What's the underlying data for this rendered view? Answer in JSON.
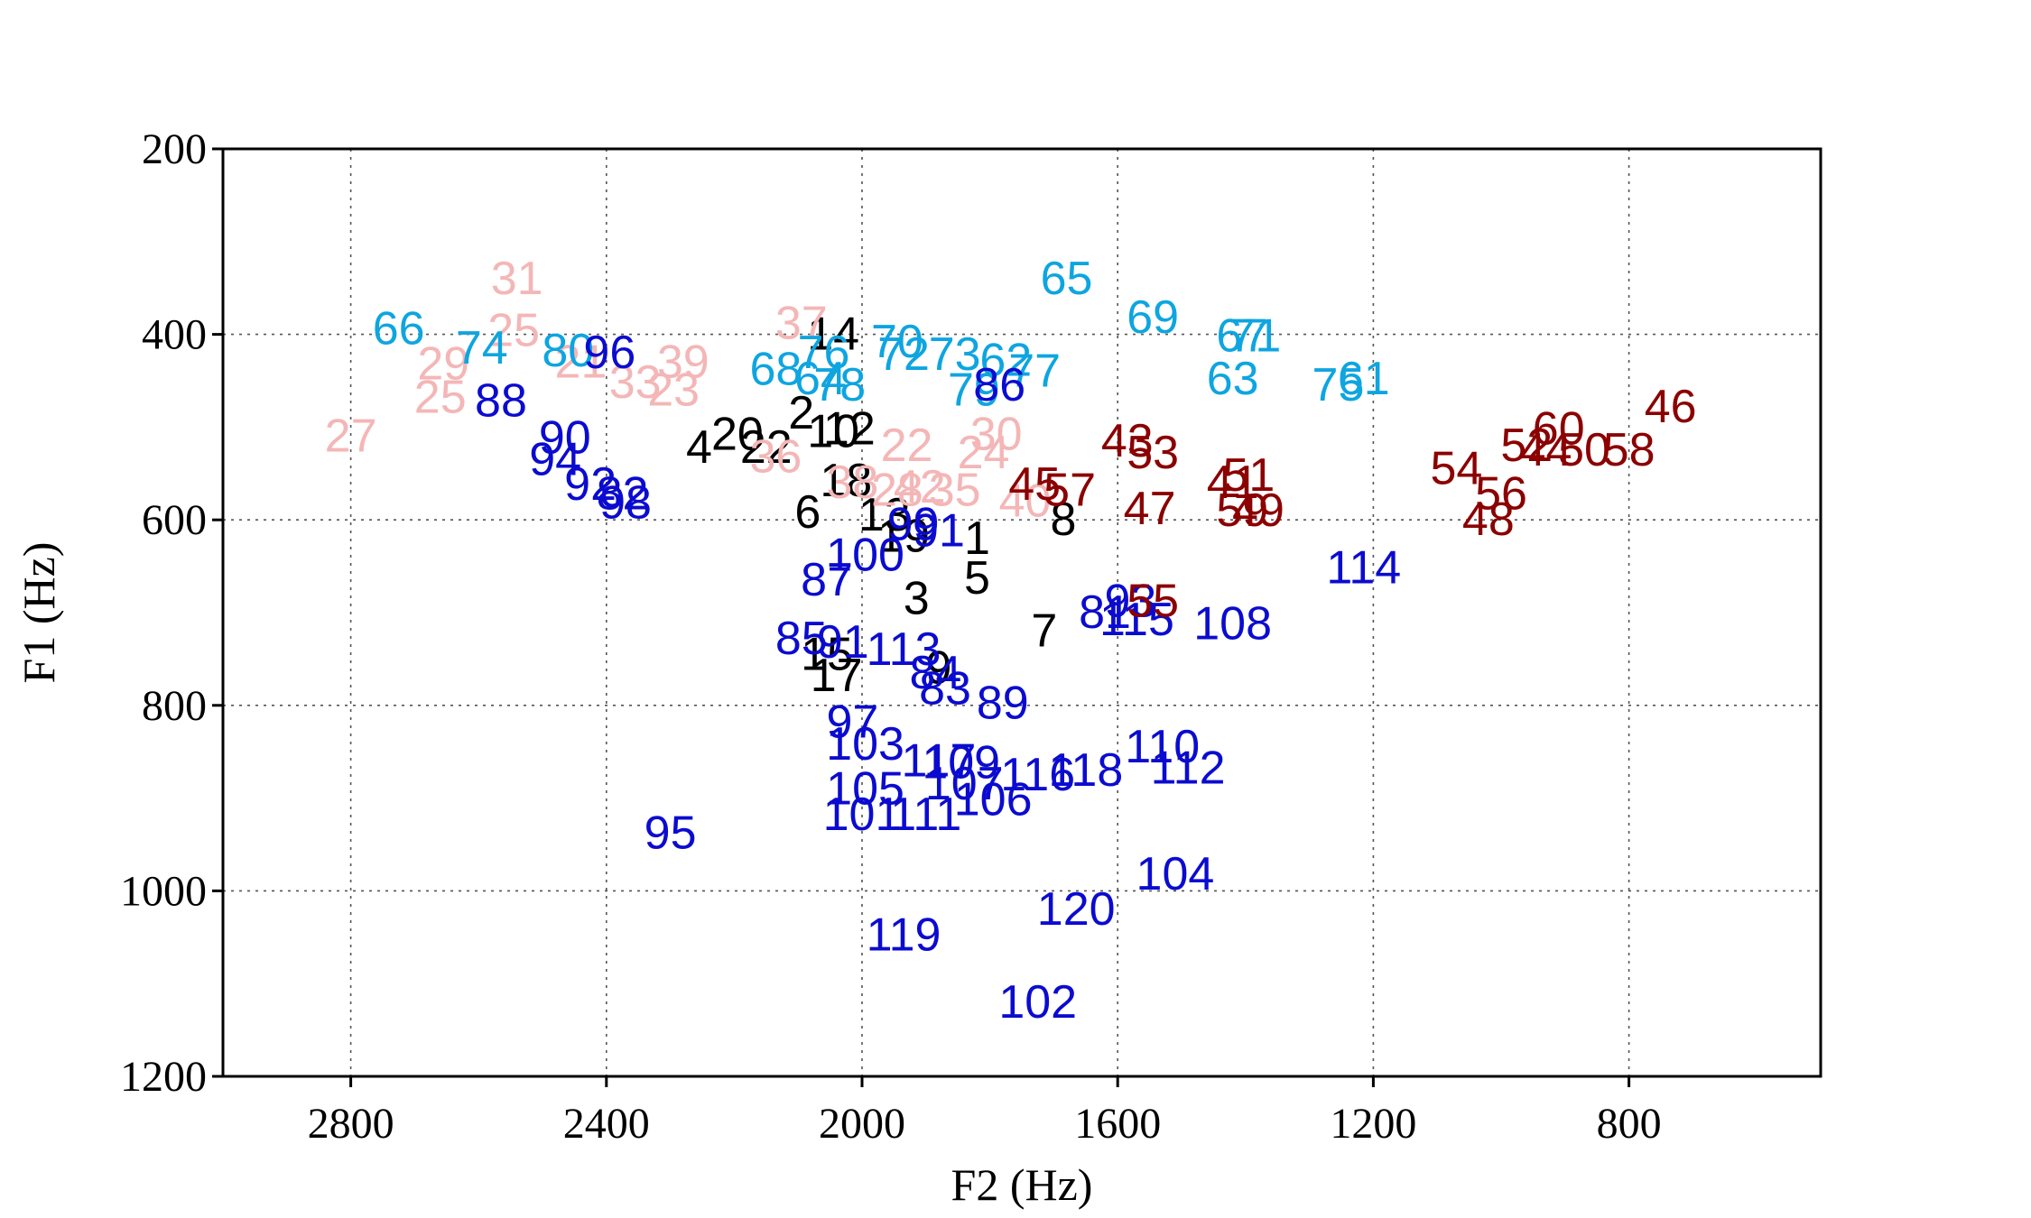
{
  "chart_data": {
    "type": "scatter",
    "title": "",
    "xlabel": "F2 (Hz)",
    "ylabel": "F1 (Hz)",
    "xlim": [
      3000,
      500
    ],
    "ylim": [
      1200,
      200
    ],
    "x_reversed": true,
    "y_reversed": true,
    "x_ticks": [
      "2800",
      "2400",
      "2000",
      "1600",
      "1200",
      "800"
    ],
    "y_ticks": [
      "200",
      "400",
      "600",
      "800",
      "1000",
      "1200"
    ],
    "grid": true,
    "point_labels_are_markers": true,
    "colors": {
      "black": "#000000",
      "pink": "#f4b6b6",
      "cyan": "#0ea5e0",
      "blue": "#0b0bd0",
      "darkred": "#8b0000"
    },
    "points": [
      {
        "label": "1",
        "x": 1820,
        "y": 620,
        "color": "black"
      },
      {
        "label": "2",
        "x": 2095,
        "y": 485,
        "color": "black"
      },
      {
        "label": "3",
        "x": 1915,
        "y": 685,
        "color": "black"
      },
      {
        "label": "4",
        "x": 2255,
        "y": 522,
        "color": "black"
      },
      {
        "label": "5",
        "x": 1820,
        "y": 663,
        "color": "black"
      },
      {
        "label": "6",
        "x": 2085,
        "y": 592,
        "color": "black"
      },
      {
        "label": "7",
        "x": 1715,
        "y": 720,
        "color": "black"
      },
      {
        "label": "8",
        "x": 1685,
        "y": 600,
        "color": "black"
      },
      {
        "label": "9",
        "x": 1880,
        "y": 760,
        "color": "black"
      },
      {
        "label": "10",
        "x": 2045,
        "y": 505,
        "color": "black"
      },
      {
        "label": "12",
        "x": 2020,
        "y": 502,
        "color": "black"
      },
      {
        "label": "13",
        "x": 1965,
        "y": 595,
        "color": "black"
      },
      {
        "label": "14",
        "x": 2045,
        "y": 400,
        "color": "black"
      },
      {
        "label": "15",
        "x": 2055,
        "y": 745,
        "color": "black"
      },
      {
        "label": "17",
        "x": 2040,
        "y": 768,
        "color": "black"
      },
      {
        "label": "18",
        "x": 2025,
        "y": 558,
        "color": "black"
      },
      {
        "label": "19",
        "x": 1935,
        "y": 618,
        "color": "black"
      },
      {
        "label": "20",
        "x": 2195,
        "y": 508,
        "color": "black"
      },
      {
        "label": "22",
        "x": 2150,
        "y": 522,
        "color": "black"
      },
      {
        "label": "21",
        "x": 2440,
        "y": 430,
        "color": "pink"
      },
      {
        "label": "22",
        "x": 1930,
        "y": 520,
        "color": "pink"
      },
      {
        "label": "23",
        "x": 2295,
        "y": 460,
        "color": "pink"
      },
      {
        "label": "24",
        "x": 1810,
        "y": 528,
        "color": "pink"
      },
      {
        "label": "25",
        "x": 2545,
        "y": 396,
        "color": "pink"
      },
      {
        "label": "25",
        "x": 2660,
        "y": 468,
        "color": "pink"
      },
      {
        "label": "27",
        "x": 2800,
        "y": 510,
        "color": "pink"
      },
      {
        "label": "28",
        "x": 1945,
        "y": 568,
        "color": "pink"
      },
      {
        "label": "29",
        "x": 2655,
        "y": 432,
        "color": "pink"
      },
      {
        "label": "30",
        "x": 1790,
        "y": 508,
        "color": "pink"
      },
      {
        "label": "31",
        "x": 2540,
        "y": 340,
        "color": "pink"
      },
      {
        "label": "33",
        "x": 2355,
        "y": 452,
        "color": "pink"
      },
      {
        "label": "35",
        "x": 1855,
        "y": 568,
        "color": "pink"
      },
      {
        "label": "36",
        "x": 2135,
        "y": 532,
        "color": "pink"
      },
      {
        "label": "37",
        "x": 2095,
        "y": 388,
        "color": "pink"
      },
      {
        "label": "38",
        "x": 2015,
        "y": 560,
        "color": "pink"
      },
      {
        "label": "39",
        "x": 2280,
        "y": 430,
        "color": "pink"
      },
      {
        "label": "40",
        "x": 1745,
        "y": 580,
        "color": "pink"
      },
      {
        "label": "42",
        "x": 1910,
        "y": 565,
        "color": "pink"
      },
      {
        "label": "61",
        "x": 1215,
        "y": 448,
        "color": "cyan"
      },
      {
        "label": "62",
        "x": 1775,
        "y": 428,
        "color": "cyan"
      },
      {
        "label": "63",
        "x": 1420,
        "y": 448,
        "color": "cyan"
      },
      {
        "label": "65",
        "x": 1680,
        "y": 340,
        "color": "cyan"
      },
      {
        "label": "66",
        "x": 2725,
        "y": 394,
        "color": "cyan"
      },
      {
        "label": "67",
        "x": 1405,
        "y": 402,
        "color": "cyan"
      },
      {
        "label": "68",
        "x": 2135,
        "y": 438,
        "color": "cyan"
      },
      {
        "label": "69",
        "x": 1545,
        "y": 382,
        "color": "cyan"
      },
      {
        "label": "70",
        "x": 1945,
        "y": 408,
        "color": "cyan"
      },
      {
        "label": "71",
        "x": 1385,
        "y": 402,
        "color": "cyan"
      },
      {
        "label": "72",
        "x": 1935,
        "y": 422,
        "color": "cyan"
      },
      {
        "label": "73",
        "x": 1855,
        "y": 422,
        "color": "cyan"
      },
      {
        "label": "74",
        "x": 2595,
        "y": 415,
        "color": "cyan"
      },
      {
        "label": "75",
        "x": 1255,
        "y": 455,
        "color": "cyan"
      },
      {
        "label": "76",
        "x": 2060,
        "y": 420,
        "color": "cyan"
      },
      {
        "label": "77",
        "x": 1730,
        "y": 440,
        "color": "cyan"
      },
      {
        "label": "78",
        "x": 2035,
        "y": 455,
        "color": "cyan"
      },
      {
        "label": "79",
        "x": 1825,
        "y": 460,
        "color": "cyan"
      },
      {
        "label": "80",
        "x": 2460,
        "y": 418,
        "color": "cyan"
      },
      {
        "label": "64",
        "x": 2065,
        "y": 448,
        "color": "cyan"
      },
      {
        "label": "81",
        "x": 1620,
        "y": 700,
        "color": "blue"
      },
      {
        "label": "82",
        "x": 2375,
        "y": 572,
        "color": "blue"
      },
      {
        "label": "83",
        "x": 1870,
        "y": 782,
        "color": "blue"
      },
      {
        "label": "84",
        "x": 1885,
        "y": 765,
        "color": "blue"
      },
      {
        "label": "85",
        "x": 2095,
        "y": 728,
        "color": "blue"
      },
      {
        "label": "86",
        "x": 1785,
        "y": 455,
        "color": "blue"
      },
      {
        "label": "87",
        "x": 2055,
        "y": 665,
        "color": "blue"
      },
      {
        "label": "88",
        "x": 2565,
        "y": 472,
        "color": "blue"
      },
      {
        "label": "89",
        "x": 1780,
        "y": 798,
        "color": "blue"
      },
      {
        "label": "90",
        "x": 2465,
        "y": 512,
        "color": "blue"
      },
      {
        "label": "91",
        "x": 1880,
        "y": 612,
        "color": "blue"
      },
      {
        "label": "91",
        "x": 2030,
        "y": 732,
        "color": "blue"
      },
      {
        "label": "92",
        "x": 2425,
        "y": 562,
        "color": "blue"
      },
      {
        "label": "93",
        "x": 1580,
        "y": 688,
        "color": "blue"
      },
      {
        "label": "94",
        "x": 2480,
        "y": 535,
        "color": "blue"
      },
      {
        "label": "95",
        "x": 2300,
        "y": 938,
        "color": "blue"
      },
      {
        "label": "96",
        "x": 2395,
        "y": 420,
        "color": "blue"
      },
      {
        "label": "97",
        "x": 2015,
        "y": 818,
        "color": "blue"
      },
      {
        "label": "98",
        "x": 2370,
        "y": 582,
        "color": "blue"
      },
      {
        "label": "99",
        "x": 1920,
        "y": 605,
        "color": "blue"
      },
      {
        "label": "100",
        "x": 1995,
        "y": 638,
        "color": "blue"
      },
      {
        "label": "101",
        "x": 2000,
        "y": 918,
        "color": "blue"
      },
      {
        "label": "102",
        "x": 1725,
        "y": 1120,
        "color": "blue"
      },
      {
        "label": "103",
        "x": 1995,
        "y": 842,
        "color": "blue"
      },
      {
        "label": "104",
        "x": 1510,
        "y": 982,
        "color": "blue"
      },
      {
        "label": "105",
        "x": 1995,
        "y": 890,
        "color": "blue"
      },
      {
        "label": "106",
        "x": 1795,
        "y": 902,
        "color": "blue"
      },
      {
        "label": "107",
        "x": 1840,
        "y": 885,
        "color": "blue"
      },
      {
        "label": "108",
        "x": 1420,
        "y": 712,
        "color": "blue"
      },
      {
        "label": "109",
        "x": 1845,
        "y": 862,
        "color": "blue"
      },
      {
        "label": "110",
        "x": 1530,
        "y": 845,
        "color": "blue"
      },
      {
        "label": "111",
        "x": 1900,
        "y": 918,
        "color": "blue"
      },
      {
        "label": "112",
        "x": 1490,
        "y": 868,
        "color": "blue"
      },
      {
        "label": "113",
        "x": 1935,
        "y": 740,
        "color": "blue"
      },
      {
        "label": "114",
        "x": 1215,
        "y": 652,
        "color": "blue"
      },
      {
        "label": "115",
        "x": 1570,
        "y": 708,
        "color": "blue"
      },
      {
        "label": "116",
        "x": 1725,
        "y": 875,
        "color": "blue"
      },
      {
        "label": "117",
        "x": 1880,
        "y": 860,
        "color": "blue"
      },
      {
        "label": "118",
        "x": 1650,
        "y": 870,
        "color": "blue"
      },
      {
        "label": "119",
        "x": 1935,
        "y": 1048,
        "color": "blue"
      },
      {
        "label": "120",
        "x": 1665,
        "y": 1020,
        "color": "blue"
      },
      {
        "label": "41",
        "x": 1420,
        "y": 560,
        "color": "darkred"
      },
      {
        "label": "43",
        "x": 1585,
        "y": 515,
        "color": "darkred"
      },
      {
        "label": "44",
        "x": 930,
        "y": 525,
        "color": "darkred"
      },
      {
        "label": "45",
        "x": 1730,
        "y": 562,
        "color": "darkred"
      },
      {
        "label": "46",
        "x": 735,
        "y": 478,
        "color": "darkred"
      },
      {
        "label": "47",
        "x": 1550,
        "y": 588,
        "color": "darkred"
      },
      {
        "label": "48",
        "x": 1020,
        "y": 600,
        "color": "darkred"
      },
      {
        "label": "49",
        "x": 1380,
        "y": 590,
        "color": "darkred"
      },
      {
        "label": "50",
        "x": 870,
        "y": 525,
        "color": "darkred"
      },
      {
        "label": "51",
        "x": 1395,
        "y": 552,
        "color": "darkred"
      },
      {
        "label": "52",
        "x": 960,
        "y": 520,
        "color": "darkred"
      },
      {
        "label": "53",
        "x": 1545,
        "y": 528,
        "color": "darkred"
      },
      {
        "label": "54",
        "x": 1070,
        "y": 545,
        "color": "darkred"
      },
      {
        "label": "55",
        "x": 1545,
        "y": 688,
        "color": "darkred"
      },
      {
        "label": "56",
        "x": 1000,
        "y": 572,
        "color": "darkred"
      },
      {
        "label": "57",
        "x": 1675,
        "y": 568,
        "color": "darkred"
      },
      {
        "label": "58",
        "x": 800,
        "y": 525,
        "color": "darkred"
      },
      {
        "label": "59",
        "x": 1405,
        "y": 590,
        "color": "darkred"
      },
      {
        "label": "60",
        "x": 910,
        "y": 502,
        "color": "darkred"
      }
    ]
  }
}
